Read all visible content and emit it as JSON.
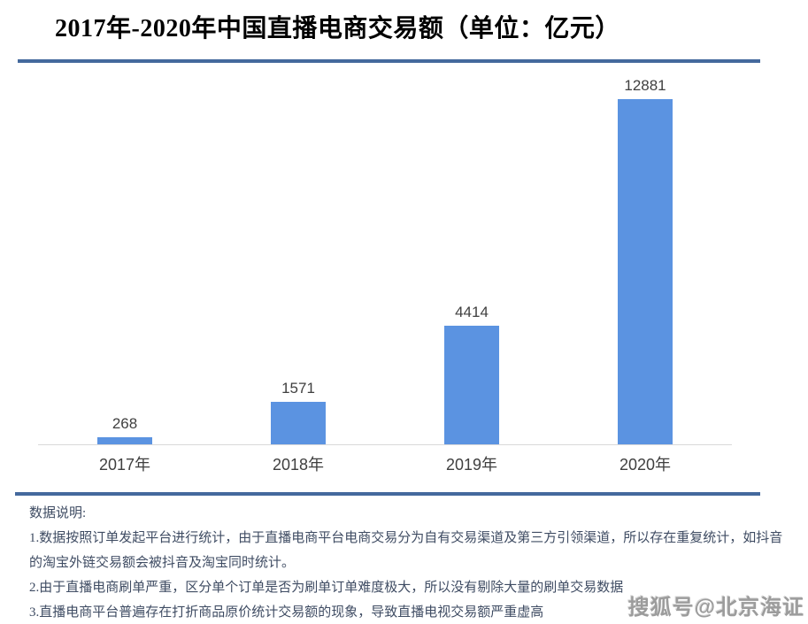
{
  "header": {
    "title": "2017年-2020年中国直播电商交易额（单位：亿元）"
  },
  "chart_data": {
    "type": "bar",
    "title": "2017年-2020年中国直播电商交易额（单位：亿元）",
    "unit": "亿元",
    "categories": [
      "2017年",
      "2018年",
      "2019年",
      "2020年"
    ],
    "values": [
      268,
      1571,
      4414,
      12881
    ],
    "xlabel": "",
    "ylabel": "",
    "ylim": [
      0,
      13000
    ],
    "grid": false,
    "legend": "none",
    "value_labels_shown": true
  },
  "notes": {
    "heading": "数据说明:",
    "items": [
      "1.数据按照订单发起平台进行统计，由于直播电商平台电商交易分为自有交易渠道及第三方引领渠道，所以存在重复统计，如抖音的淘宝外链交易额会被抖音及淘宝同时统计。",
      "2.由于直播电商刷单严重，区分单个订单是否为刷单订单难度极大，所以没有剔除大量的刷单交易数据",
      "3.直播电商平台普遍存在打折商品原价统计交易额的现象，导致直播电视交易额严重虚高"
    ]
  },
  "watermark": {
    "text": "搜狐号@北京海证"
  },
  "colors": {
    "bar": "#5B93E1",
    "divider": "#44699D",
    "axis_line": "#D9D9D9",
    "label_text": "#404040",
    "notes_text": "#3F4C63"
  }
}
